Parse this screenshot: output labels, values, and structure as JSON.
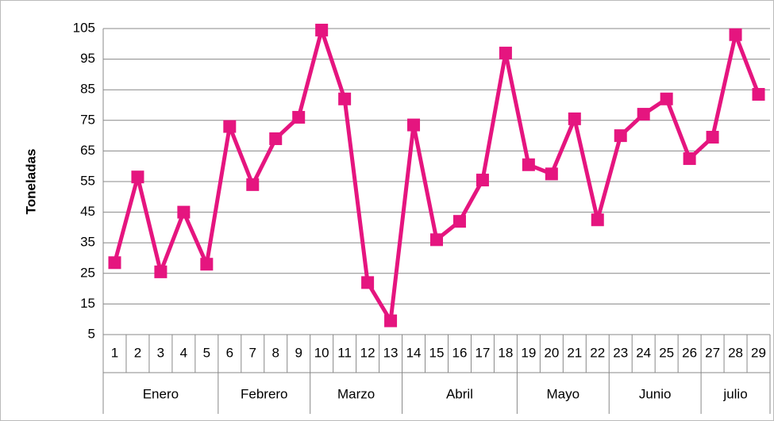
{
  "chart_data": {
    "type": "line",
    "y_label": "Toneladas",
    "categories": [
      "1",
      "2",
      "3",
      "4",
      "5",
      "6",
      "7",
      "8",
      "9",
      "10",
      "11",
      "12",
      "13",
      "14",
      "15",
      "16",
      "17",
      "18",
      "19",
      "20",
      "21",
      "22",
      "23",
      "24",
      "25",
      "26",
      "27",
      "28",
      "29"
    ],
    "category_groups": [
      "Enero",
      null,
      null,
      null,
      null,
      "Febrero",
      null,
      null,
      null,
      "Marzo",
      null,
      null,
      null,
      "Abril",
      null,
      null,
      null,
      null,
      "Mayo",
      null,
      null,
      null,
      "Junio",
      null,
      null,
      null,
      "julio",
      null,
      null
    ],
    "series": [
      {
        "color": "#e5157f",
        "values": [
          28.5,
          56.5,
          25.5,
          45,
          28,
          73,
          54,
          69,
          76,
          104.5,
          82,
          22,
          9.5,
          73.5,
          36,
          42,
          55.5,
          97,
          60.5,
          57.5,
          75.5,
          42.5,
          70,
          77,
          82,
          62.5,
          69.5,
          103,
          83.5
        ]
      }
    ],
    "ylim": [
      5,
      105
    ],
    "yticks": [
      5,
      15,
      25,
      35,
      45,
      55,
      65,
      75,
      85,
      95,
      105
    ],
    "grid": true
  }
}
